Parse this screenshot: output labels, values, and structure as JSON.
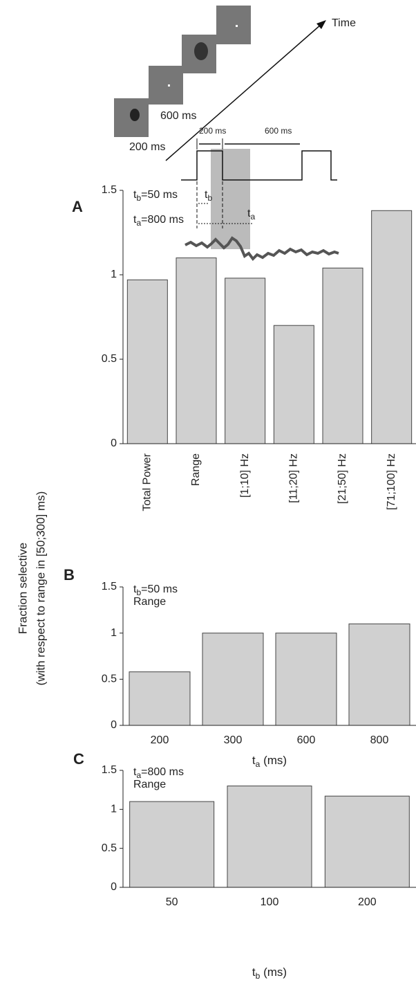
{
  "diagram": {
    "time": "Time",
    "stim_long": "600 ms",
    "stim_short": "200 ms",
    "span_short": "200 ms",
    "span_long": "600 ms",
    "tb": [
      "t",
      "b"
    ],
    "ta": [
      "t",
      "a"
    ]
  },
  "shared_ylabel": [
    "Fraction selective",
    "(with respect to range in [50;300] ms)"
  ],
  "chart_data": [
    {
      "type": "bar",
      "panel": "A",
      "annotations": [
        [
          "t",
          "b",
          "=50 ms"
        ],
        [
          "t",
          "a",
          "=800 ms"
        ]
      ],
      "categories": [
        "Total Power",
        "Range",
        "[1;10] Hz",
        "[11;20] Hz",
        "[21;50] Hz",
        "[71;100] Hz"
      ],
      "values": [
        0.97,
        1.1,
        0.98,
        0.7,
        1.04,
        1.38
      ],
      "color": "#d0d0d0",
      "ylim": [
        0,
        1.5
      ],
      "yticks": [
        0,
        0.5,
        1,
        1.5
      ]
    },
    {
      "type": "bar",
      "panel": "B",
      "annotations": [
        [
          "t",
          "b",
          "=50 ms"
        ],
        "Range"
      ],
      "categories": [
        "200",
        "300",
        "600",
        "800"
      ],
      "xlabel": [
        "t",
        "a",
        " (ms)"
      ],
      "values": [
        0.58,
        1.0,
        1.0,
        1.1
      ],
      "color": "#d0d0d0",
      "ylim": [
        0,
        1.5
      ],
      "yticks": [
        0,
        0.5,
        1,
        1.5
      ]
    },
    {
      "type": "bar",
      "panel": "C",
      "annotations": [
        [
          "t",
          "a",
          "=800 ms"
        ],
        "Range"
      ],
      "categories": [
        "50",
        "100",
        "200"
      ],
      "xlabel": [
        "t",
        "b",
        " (ms)"
      ],
      "values": [
        1.1,
        1.3,
        1.17
      ],
      "color": "#d0d0d0",
      "ylim": [
        0,
        1.5
      ],
      "yticks": [
        0,
        0.5,
        1,
        1.5
      ]
    }
  ]
}
